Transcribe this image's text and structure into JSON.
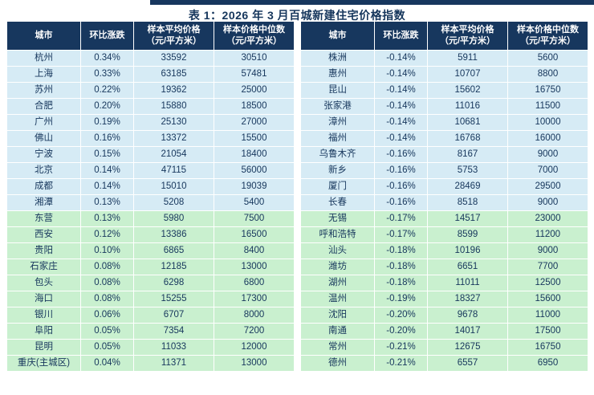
{
  "title": "表 1：2026 年 3 月百城新建住宅价格指数",
  "columns": {
    "city": "城市",
    "mom": "环比涨跌",
    "avg_line1": "样本平均价格",
    "avg_line2": "（元/平方米）",
    "median_line1": "样本价格中位数",
    "median_line2": "（元/平方米）"
  },
  "colors": {
    "header_bg": "#17375E",
    "row_blue": "#D6EBF5",
    "row_green": "#C9F0CF",
    "text": "#16365C",
    "top_rule": "#17375E"
  },
  "left_table": {
    "rows": [
      {
        "city": "杭州",
        "mom": "0.34%",
        "avg": "33592",
        "median": "30510",
        "group": "blue"
      },
      {
        "city": "上海",
        "mom": "0.33%",
        "avg": "63185",
        "median": "57481",
        "group": "blue"
      },
      {
        "city": "苏州",
        "mom": "0.22%",
        "avg": "19362",
        "median": "25000",
        "group": "blue"
      },
      {
        "city": "合肥",
        "mom": "0.20%",
        "avg": "15880",
        "median": "18500",
        "group": "blue"
      },
      {
        "city": "广州",
        "mom": "0.19%",
        "avg": "25130",
        "median": "27000",
        "group": "blue"
      },
      {
        "city": "佛山",
        "mom": "0.16%",
        "avg": "13372",
        "median": "15500",
        "group": "blue"
      },
      {
        "city": "宁波",
        "mom": "0.15%",
        "avg": "21054",
        "median": "18400",
        "group": "blue"
      },
      {
        "city": "北京",
        "mom": "0.14%",
        "avg": "47115",
        "median": "56000",
        "group": "blue"
      },
      {
        "city": "成都",
        "mom": "0.14%",
        "avg": "15010",
        "median": "19039",
        "group": "blue"
      },
      {
        "city": "湘潭",
        "mom": "0.13%",
        "avg": "5208",
        "median": "5400",
        "group": "blue"
      },
      {
        "city": "东营",
        "mom": "0.13%",
        "avg": "5980",
        "median": "7500",
        "group": "green"
      },
      {
        "city": "西安",
        "mom": "0.12%",
        "avg": "13386",
        "median": "16500",
        "group": "green"
      },
      {
        "city": "贵阳",
        "mom": "0.10%",
        "avg": "6865",
        "median": "8400",
        "group": "green"
      },
      {
        "city": "石家庄",
        "mom": "0.08%",
        "avg": "12185",
        "median": "13000",
        "group": "green"
      },
      {
        "city": "包头",
        "mom": "0.08%",
        "avg": "6298",
        "median": "6800",
        "group": "green"
      },
      {
        "city": "海口",
        "mom": "0.08%",
        "avg": "15255",
        "median": "17300",
        "group": "green"
      },
      {
        "city": "银川",
        "mom": "0.06%",
        "avg": "6707",
        "median": "8000",
        "group": "green"
      },
      {
        "city": "阜阳",
        "mom": "0.05%",
        "avg": "7354",
        "median": "7200",
        "group": "green"
      },
      {
        "city": "昆明",
        "mom": "0.05%",
        "avg": "11033",
        "median": "12000",
        "group": "green"
      },
      {
        "city": "重庆(主城区)",
        "mom": "0.04%",
        "avg": "11371",
        "median": "13000",
        "group": "green"
      }
    ]
  },
  "right_table": {
    "rows": [
      {
        "city": "株洲",
        "mom": "-0.14%",
        "avg": "5911",
        "median": "5600",
        "group": "blue"
      },
      {
        "city": "惠州",
        "mom": "-0.14%",
        "avg": "10707",
        "median": "8800",
        "group": "blue"
      },
      {
        "city": "昆山",
        "mom": "-0.14%",
        "avg": "15602",
        "median": "16750",
        "group": "blue"
      },
      {
        "city": "张家港",
        "mom": "-0.14%",
        "avg": "11016",
        "median": "11500",
        "group": "blue"
      },
      {
        "city": "漳州",
        "mom": "-0.14%",
        "avg": "10681",
        "median": "10000",
        "group": "blue"
      },
      {
        "city": "福州",
        "mom": "-0.14%",
        "avg": "16768",
        "median": "16000",
        "group": "blue"
      },
      {
        "city": "乌鲁木齐",
        "mom": "-0.16%",
        "avg": "8167",
        "median": "9000",
        "group": "blue"
      },
      {
        "city": "新乡",
        "mom": "-0.16%",
        "avg": "5753",
        "median": "7000",
        "group": "blue"
      },
      {
        "city": "厦门",
        "mom": "-0.16%",
        "avg": "28469",
        "median": "29500",
        "group": "blue"
      },
      {
        "city": "长春",
        "mom": "-0.16%",
        "avg": "8518",
        "median": "9000",
        "group": "blue"
      },
      {
        "city": "无锡",
        "mom": "-0.17%",
        "avg": "14517",
        "median": "23000",
        "group": "green"
      },
      {
        "city": "呼和浩特",
        "mom": "-0.17%",
        "avg": "8599",
        "median": "11200",
        "group": "green"
      },
      {
        "city": "汕头",
        "mom": "-0.18%",
        "avg": "10196",
        "median": "9000",
        "group": "green"
      },
      {
        "city": "潍坊",
        "mom": "-0.18%",
        "avg": "6651",
        "median": "7700",
        "group": "green"
      },
      {
        "city": "湖州",
        "mom": "-0.18%",
        "avg": "11011",
        "median": "12500",
        "group": "green"
      },
      {
        "city": "温州",
        "mom": "-0.19%",
        "avg": "18327",
        "median": "15600",
        "group": "green"
      },
      {
        "city": "沈阳",
        "mom": "-0.20%",
        "avg": "9678",
        "median": "11000",
        "group": "green"
      },
      {
        "city": "南通",
        "mom": "-0.20%",
        "avg": "14017",
        "median": "17500",
        "group": "green"
      },
      {
        "city": "常州",
        "mom": "-0.21%",
        "avg": "12675",
        "median": "16750",
        "group": "green"
      },
      {
        "city": "德州",
        "mom": "-0.21%",
        "avg": "6557",
        "median": "6950",
        "group": "green"
      }
    ]
  }
}
